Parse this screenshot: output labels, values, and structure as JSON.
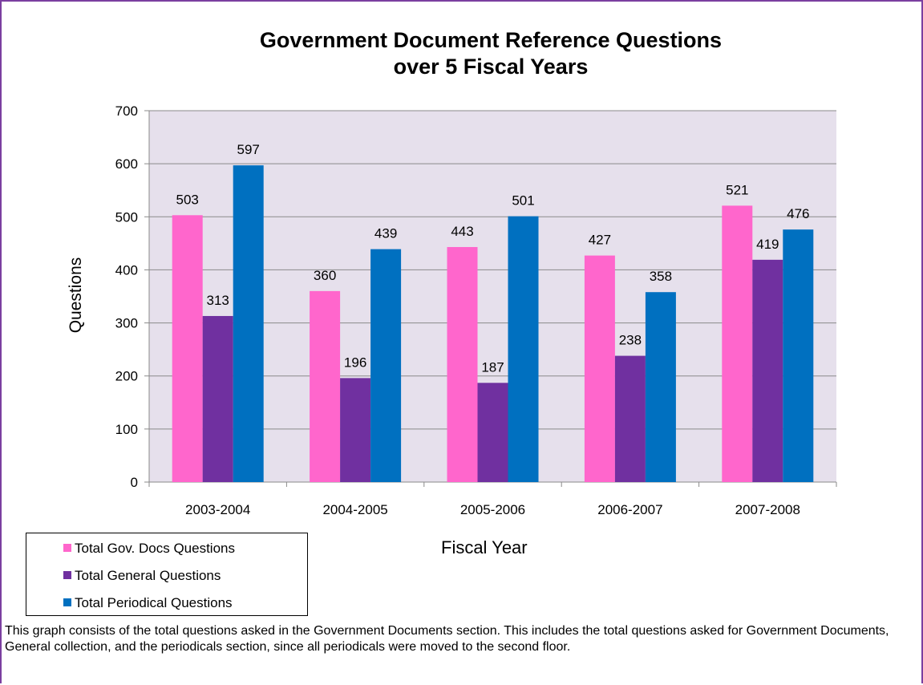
{
  "chart_data": {
    "type": "bar",
    "title_line1": "Government Document Reference Questions",
    "title_line2": "over 5 Fiscal Years",
    "xlabel": "Fiscal Year",
    "ylabel": "Questions",
    "ylim": [
      0,
      700
    ],
    "yticks": [
      0,
      100,
      200,
      300,
      400,
      500,
      600,
      700
    ],
    "grid": true,
    "legend_position": "bottom-left",
    "plot_background": "#e6e0ec",
    "categories": [
      "2003-2004",
      "2004-2005",
      "2005-2006",
      "2006-2007",
      "2007-2008"
    ],
    "series": [
      {
        "name": "Total Gov. Docs Questions",
        "color": "#ff66cc",
        "values": [
          503,
          360,
          443,
          427,
          521
        ]
      },
      {
        "name": "Total General Questions",
        "color": "#7030a0",
        "values": [
          313,
          196,
          187,
          238,
          419
        ]
      },
      {
        "name": "Total Periodical Questions",
        "color": "#0070c0",
        "values": [
          597,
          439,
          501,
          358,
          476
        ]
      }
    ]
  },
  "caption": "This graph consists of the total questions asked in the Government Documents section.  This includes the total questions asked for Government Documents, General collection, and the periodicals section,  since all periodicals were moved to the second floor."
}
